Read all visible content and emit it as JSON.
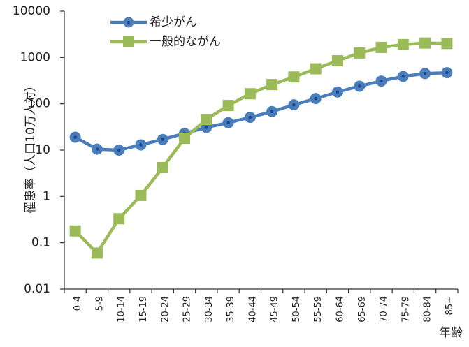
{
  "chart_data": {
    "type": "line",
    "yscale": "log",
    "ylim": [
      0.01,
      10000
    ],
    "ytick_labels": [
      "0.01",
      "0.1",
      "1",
      "10",
      "100",
      "1000",
      "10000"
    ],
    "ylabel": "罹患率（人口10万人対）",
    "xlabel": "年齢",
    "grid": false,
    "legend_position": "top-left",
    "categories": [
      "0-4",
      "5-9",
      "10-14",
      "15-19",
      "20-24",
      "25-29",
      "30-34",
      "35-39",
      "40-44",
      "45-49",
      "50-54",
      "55-59",
      "60-64",
      "65-69",
      "70-74",
      "75-79",
      "80-84",
      "85+"
    ],
    "series": [
      {
        "name": "希少がん",
        "color": "#4a7ebb",
        "marker": "circle",
        "values": [
          19,
          10.5,
          10,
          13,
          17,
          23,
          31,
          39,
          51,
          68,
          95,
          130,
          180,
          240,
          310,
          390,
          450,
          470
        ]
      },
      {
        "name": "一般的ながん",
        "color": "#9bbb59",
        "marker": "square",
        "values": [
          0.18,
          0.06,
          0.33,
          1.05,
          4.2,
          18,
          46,
          92,
          165,
          260,
          380,
          570,
          850,
          1250,
          1650,
          1900,
          2050,
          2000
        ]
      }
    ]
  }
}
